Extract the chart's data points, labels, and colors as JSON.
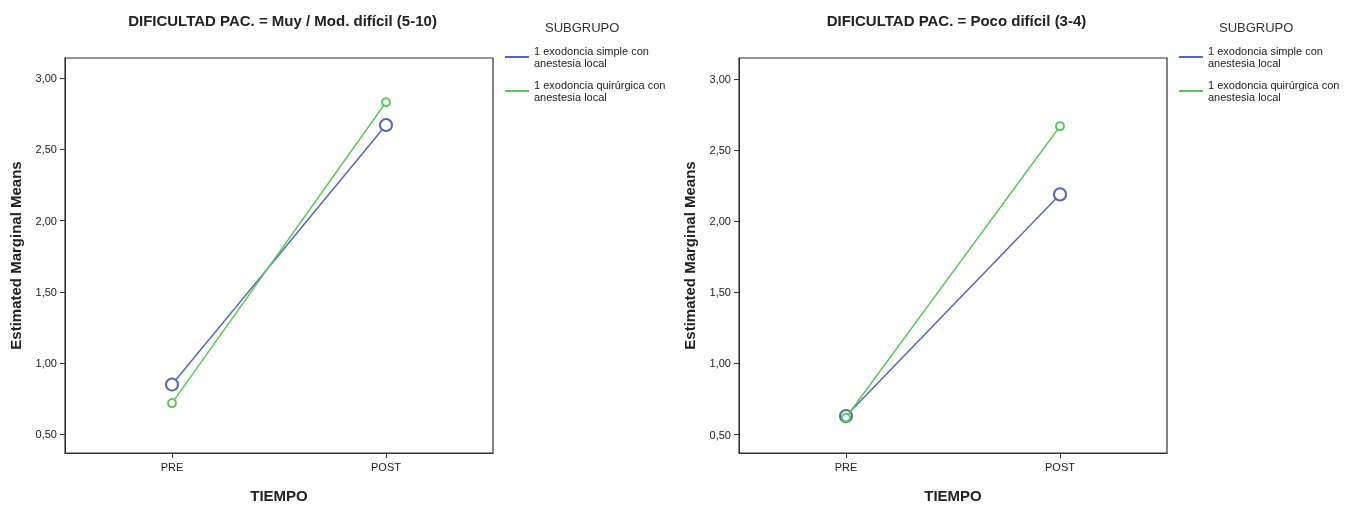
{
  "chart_data": [
    {
      "type": "line",
      "title": "DIFICULTAD PAC. = Muy / Mod. difícil (5-10)",
      "xlabel": "TIEMPO",
      "ylabel": "Estimated Marginal Means",
      "legend_title": "SUBGRUPO",
      "categories": [
        "PRE",
        "POST"
      ],
      "series": [
        {
          "name": "1 exodoncia simple con anestesia local",
          "color": "#5468b4",
          "values": [
            0.85,
            2.67
          ]
        },
        {
          "name": "1 exodoncia quirúrgica con anestesia local",
          "color": "#5ac85a",
          "values": [
            0.72,
            2.83
          ]
        }
      ],
      "ylim": [
        0.37,
        3.14
      ],
      "yticks": [
        {
          "value": 0.5,
          "label": "0,50"
        },
        {
          "value": 1,
          "label": "1,00"
        },
        {
          "value": 1.5,
          "label": "1,50"
        },
        {
          "value": 2,
          "label": "2,00"
        },
        {
          "value": 2.5,
          "label": "2,50"
        },
        {
          "value": 3,
          "label": "3,00"
        }
      ],
      "grid": false,
      "legend": "right",
      "marker": "circle",
      "line_style": "solid"
    },
    {
      "type": "line",
      "title": "DIFICULTAD PAC. = Poco difícil (3-4)",
      "xlabel": "TIEMPO",
      "ylabel": "Estimated Marginal Means",
      "legend_title": "SUBGRUPO",
      "categories": [
        "PRE",
        "POST"
      ],
      "series": [
        {
          "name": "1 exodoncia simple con anestesia local",
          "color": "#5468b4",
          "values": [
            0.63,
            2.19
          ]
        },
        {
          "name": "1 exodoncia quirúrgica con anestesia local",
          "color": "#5ac85a",
          "values": [
            0.62,
            2.67
          ]
        }
      ],
      "ylim": [
        0.37,
        3.15
      ],
      "yticks": [
        {
          "value": 0.5,
          "label": "0,50"
        },
        {
          "value": 1,
          "label": "1,00"
        },
        {
          "value": 1.5,
          "label": "1,50"
        },
        {
          "value": 2,
          "label": "2,00"
        },
        {
          "value": 2.5,
          "label": "2,50"
        },
        {
          "value": 3,
          "label": "3,00"
        }
      ],
      "grid": false,
      "legend": "right",
      "marker": "circle",
      "line_style": "solid"
    }
  ]
}
